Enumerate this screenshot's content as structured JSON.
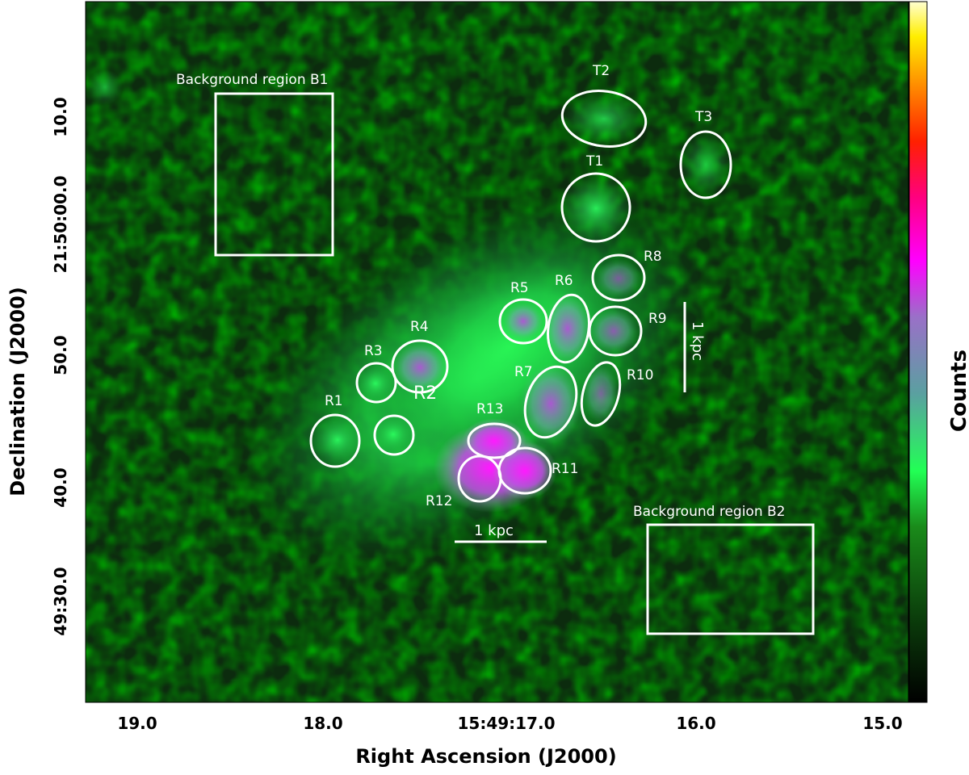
{
  "axes": {
    "xlabel": "Right Ascension (J2000)",
    "ylabel": "Declination (J2000)",
    "xticks": [
      "19.0",
      "18.0",
      "15:49:17.0",
      "16.0",
      "15.0"
    ],
    "yticks": [
      "10.0",
      "21:50:00.0",
      "50.0",
      "40.0",
      "49:30.0"
    ]
  },
  "colorbar": {
    "label": "Counts",
    "colors": [
      "#000000",
      "#0b3d0b",
      "#1a8a1a",
      "#22ff55",
      "#5aa0a0",
      "#9a70c8",
      "#ff00ff",
      "#ff0080",
      "#ff2000",
      "#ff8c00",
      "#ffee00",
      "#ffffd0"
    ]
  },
  "regions": [
    "R1",
    "R2",
    "R3",
    "R4",
    "R5",
    "R6",
    "R7",
    "R8",
    "R9",
    "R10",
    "R11",
    "R12",
    "R13",
    "T1",
    "T2",
    "T3"
  ],
  "background_regions": [
    "Background region B1",
    "Background region B2"
  ],
  "scale_bars": [
    "1 kpc",
    "1 kpc"
  ]
}
